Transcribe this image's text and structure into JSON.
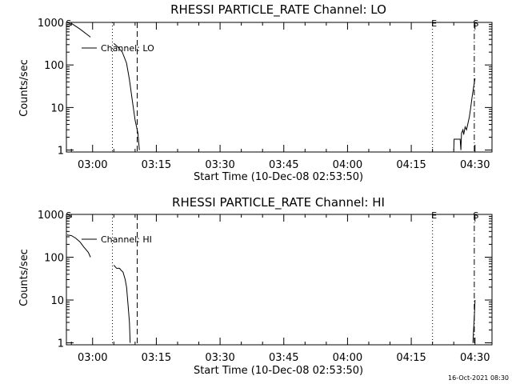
{
  "footer": {
    "timestamp": "16-Oct-2021 08:30"
  },
  "chart_data": [
    {
      "type": "line",
      "title": "RHESSI PARTICLE_RATE Channel: LO",
      "xlabel": "Start Time (10-Dec-08 02:53:50)",
      "ylabel": "Counts/sec",
      "yscale": "log",
      "xlim": [
        "02:53:50",
        "04:34:00"
      ],
      "ylim": [
        0.9,
        1000
      ],
      "xticks": [
        "03:00",
        "03:15",
        "03:30",
        "03:45",
        "04:00",
        "04:15",
        "04:30"
      ],
      "yticks": [
        "1",
        "10",
        "100",
        "1000"
      ],
      "grid": false,
      "legend": {
        "position": "top-left",
        "entries": [
          "Channel: LO"
        ]
      },
      "markers": [
        {
          "label": "S",
          "time": "02:54:00",
          "style": "dotted",
          "label_only": true
        },
        {
          "label": "",
          "time": "03:04:40",
          "style": "dotted"
        },
        {
          "label": "",
          "time": "03:10:30",
          "style": "dashed"
        },
        {
          "label": "E",
          "time": "04:20:00",
          "style": "dotted"
        },
        {
          "label": "S",
          "time": "04:29:50",
          "style": "dashdot"
        }
      ],
      "series": [
        {
          "segments": [
            [
              [
                "02:55:00",
                950
              ],
              [
                "02:57:00",
                700
              ],
              [
                "02:59:30",
                450
              ]
            ],
            [
              [
                "03:05:00",
                320
              ],
              [
                "03:06:00",
                260
              ],
              [
                "03:07:00",
                200
              ],
              [
                "03:08:00",
                110
              ],
              [
                "03:08:40",
                45
              ],
              [
                "03:09:20",
                15
              ],
              [
                "03:10:00",
                5
              ],
              [
                "03:10:40",
                2.5
              ],
              [
                "03:11:00",
                1
              ]
            ],
            [
              [
                "04:25:00",
                1
              ],
              [
                "04:25:05",
                1.8
              ],
              [
                "04:26:30",
                1.8
              ],
              [
                "04:26:40",
                1
              ],
              [
                "04:26:50",
                2.5
              ],
              [
                "04:27:10",
                3
              ],
              [
                "04:27:20",
                2.3
              ],
              [
                "04:27:40",
                3.5
              ],
              [
                "04:28:00",
                3
              ],
              [
                "04:28:20",
                4.2
              ],
              [
                "04:28:40",
                6
              ],
              [
                "04:29:00",
                10
              ],
              [
                "04:29:20",
                18
              ],
              [
                "04:29:40",
                30
              ],
              [
                "04:30:00",
                48
              ]
            ]
          ]
        }
      ]
    },
    {
      "type": "line",
      "title": "RHESSI PARTICLE_RATE Channel: HI",
      "xlabel": "Start Time (10-Dec-08 02:53:50)",
      "ylabel": "Counts/sec",
      "yscale": "log",
      "xlim": [
        "02:53:50",
        "04:34:00"
      ],
      "ylim": [
        0.9,
        1000
      ],
      "xticks": [
        "03:00",
        "03:15",
        "03:30",
        "03:45",
        "04:00",
        "04:15",
        "04:30"
      ],
      "yticks": [
        "1",
        "10",
        "100",
        "1000"
      ],
      "grid": false,
      "legend": {
        "position": "top-left",
        "entries": [
          "Channel: HI"
        ]
      },
      "markers": [
        {
          "label": "S",
          "time": "02:54:00",
          "style": "dotted",
          "label_only": true
        },
        {
          "label": "",
          "time": "03:04:40",
          "style": "dotted"
        },
        {
          "label": "",
          "time": "03:10:30",
          "style": "dashed"
        },
        {
          "label": "E",
          "time": "04:20:00",
          "style": "dotted"
        },
        {
          "label": "S",
          "time": "04:29:50",
          "style": "dashdot"
        }
      ],
      "series": [
        {
          "segments": [
            [
              [
                "02:54:00",
                330
              ],
              [
                "02:55:00",
                320
              ],
              [
                "02:56:00",
                280
              ],
              [
                "02:57:00",
                230
              ],
              [
                "02:58:00",
                170
              ],
              [
                "02:59:00",
                130
              ],
              [
                "02:59:30",
                100
              ]
            ],
            [
              [
                "03:05:00",
                65
              ],
              [
                "03:05:40",
                55
              ],
              [
                "03:06:20",
                55
              ],
              [
                "03:06:40",
                50
              ],
              [
                "03:07:10",
                45
              ],
              [
                "03:07:40",
                30
              ],
              [
                "03:08:00",
                20
              ],
              [
                "03:08:20",
                8
              ],
              [
                "03:08:40",
                3
              ],
              [
                "03:08:50",
                1
              ]
            ],
            [
              [
                "04:29:30",
                1
              ],
              [
                "04:29:50",
                4
              ],
              [
                "04:30:00",
                10
              ]
            ]
          ]
        }
      ]
    }
  ]
}
